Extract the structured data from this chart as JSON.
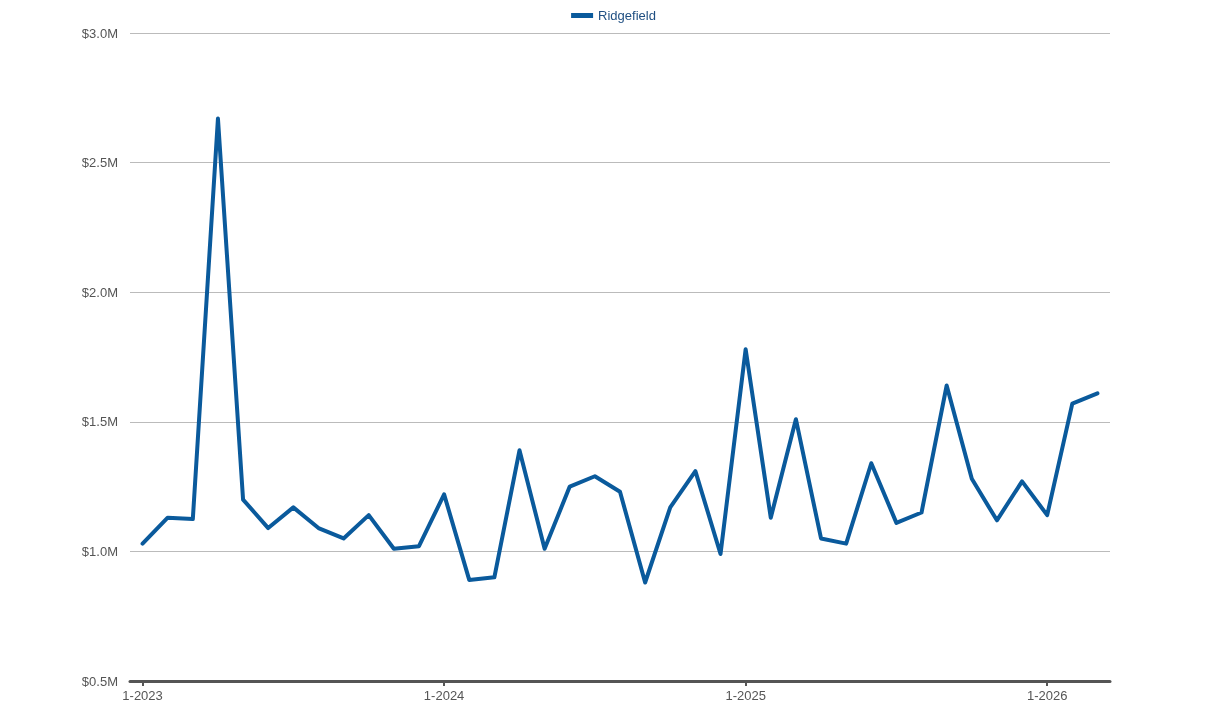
{
  "chart_data": {
    "type": "line",
    "categories": [
      "1-2023",
      null,
      null,
      null,
      null,
      null,
      null,
      null,
      null,
      null,
      null,
      null,
      "1-2024",
      null,
      null,
      null,
      null,
      null,
      null,
      null,
      null,
      null,
      null,
      null,
      "1-2025",
      null,
      null,
      null,
      null,
      null,
      null,
      null,
      null,
      null,
      null,
      null,
      "1-2026",
      null,
      null
    ],
    "series": [
      {
        "name": "Ridgefield",
        "color": "#0a5a9c",
        "values": [
          1.03,
          1.13,
          1.125,
          2.67,
          1.2,
          1.09,
          1.17,
          1.09,
          1.05,
          1.14,
          1.01,
          1.02,
          1.22,
          0.89,
          0.9,
          1.39,
          1.01,
          1.25,
          1.29,
          1.23,
          0.88,
          1.17,
          1.31,
          0.99,
          1.78,
          1.13,
          1.51,
          1.05,
          1.03,
          1.34,
          1.11,
          1.15,
          1.64,
          1.28,
          1.12,
          1.27,
          1.14,
          1.57,
          1.61
        ]
      }
    ],
    "ylim": [
      0.5,
      3.0
    ],
    "yticks": [
      {
        "value": 0.5,
        "label": "$0.5M"
      },
      {
        "value": 1.0,
        "label": "$1.0M"
      },
      {
        "value": 1.5,
        "label": "$1.5M"
      },
      {
        "value": 2.0,
        "label": "$2.0M"
      },
      {
        "value": 2.5,
        "label": "$2.5M"
      },
      {
        "value": 3.0,
        "label": "$3.0M"
      }
    ],
    "grid": "y",
    "legend": "top",
    "marker": "none",
    "line_style": "solid"
  }
}
